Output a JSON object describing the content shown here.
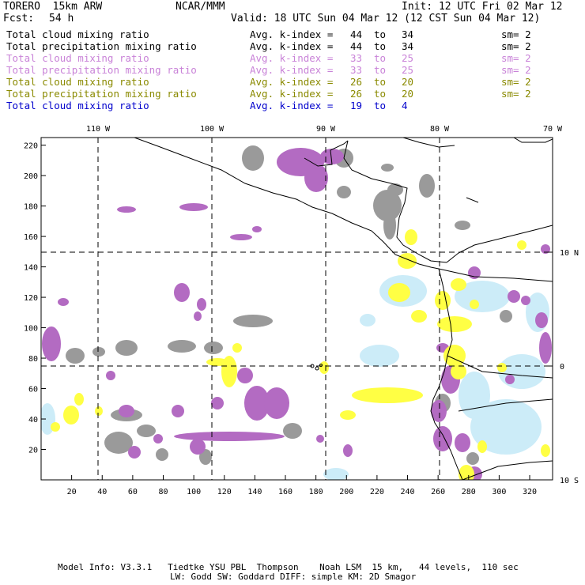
{
  "header": {
    "model": "TORERO  15km ARW",
    "center": "NCAR/MMM",
    "init": "Init: 12 UTC Fri 02 Mar 12",
    "fcst_label": "Fcst:",
    "fcst_value": "54 h",
    "valid": "Valid: 18 UTC Sun 04 Mar 12 (12 CST Sun 04 Mar 12)"
  },
  "legend": [
    {
      "name": "Total cloud mixing ratio",
      "avg": "Avg. k-index =",
      "from": "44",
      "to_word": "to",
      "to": "34",
      "sm": "sm= 2",
      "color": "#000000"
    },
    {
      "name": "Total precipitation mixing ratio",
      "avg": "Avg. k-index =",
      "from": "44",
      "to_word": "to",
      "to": "34",
      "sm": "sm= 2",
      "color": "#000000"
    },
    {
      "name": "Total cloud mixing ratio",
      "avg": "Avg. k-index =",
      "from": "33",
      "to_word": "to",
      "to": "25",
      "sm": "sm= 2",
      "color": "#c983d8"
    },
    {
      "name": "Total precipitation mixing ratio",
      "avg": "Avg. k-index =",
      "from": "33",
      "to_word": "to",
      "to": "25",
      "sm": "sm= 2",
      "color": "#c983d8"
    },
    {
      "name": "Total cloud mixing ratio",
      "avg": "Avg. k-index =",
      "from": "26",
      "to_word": "to",
      "to": "20",
      "sm": "sm= 2",
      "color": "#8a8a00"
    },
    {
      "name": "Total precipitation mixing ratio",
      "avg": "Avg. k-index =",
      "from": "26",
      "to_word": "to",
      "to": "20",
      "sm": "sm= 2",
      "color": "#8a8a00"
    },
    {
      "name": "Total cloud mixing ratio",
      "avg": "Avg. k-index =",
      "from": "19",
      "to_word": "to",
      "to": "4",
      "sm": "",
      "color": "#0000cc"
    }
  ],
  "map": {
    "x_ticks": [
      "20",
      "40",
      "60",
      "80",
      "100",
      "120",
      "140",
      "160",
      "180",
      "200",
      "220",
      "240",
      "260",
      "280",
      "300",
      "320"
    ],
    "y_ticks": [
      "20",
      "40",
      "60",
      "80",
      "100",
      "120",
      "140",
      "160",
      "180",
      "200",
      "220"
    ],
    "lon_labels": [
      "110 W",
      "100 W",
      "90 W",
      "80 W",
      "70 W"
    ],
    "lat_labels": [
      "10 N",
      "0",
      "10 S"
    ],
    "colors": {
      "gray": "#9a9a9a",
      "purple": "#b36bc2",
      "yellow": "#ffff44",
      "light_blue": "#ccecf8",
      "coast": "#000000"
    }
  },
  "footer": {
    "line1": "Model Info: V3.3.1   Tiedtke YSU PBL  Thompson    Noah LSM  15 km,   44 levels,  110 sec",
    "line2": "LW: Godd SW: Goddard DIFF: simple KM: 2D Smagor"
  }
}
